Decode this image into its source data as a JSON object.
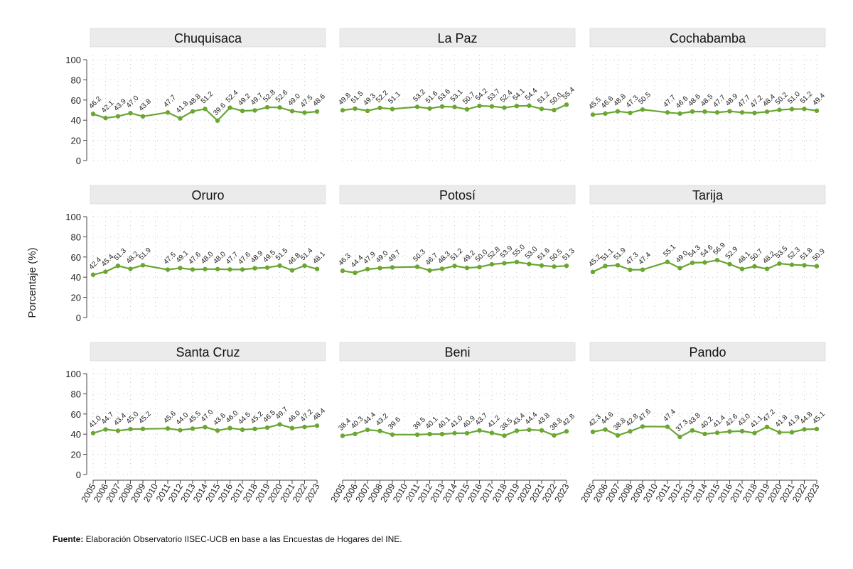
{
  "y_axis_title": "Porcentaje (%)",
  "source": {
    "label": "Fuente:",
    "text": " Elaboración Observatorio IISEC-UCB en base a las Encuestas de Hogares del INE."
  },
  "colors": {
    "line": "#6aa632",
    "panel_header": "#ebebeb",
    "grid": "#c8c8c8"
  },
  "chart_data": [
    {
      "type": "line",
      "title": "Chuquisaca",
      "ylim": [
        0,
        100
      ],
      "yticks": [
        0,
        20,
        40,
        60,
        80,
        100
      ],
      "x": [
        2005,
        2006,
        2007,
        2008,
        2009,
        2011,
        2012,
        2013,
        2014,
        2015,
        2016,
        2017,
        2018,
        2019,
        2020,
        2021,
        2022,
        2023
      ],
      "values": [
        46.2,
        42.1,
        43.9,
        47.0,
        43.8,
        47.7,
        41.8,
        48.8,
        51.2,
        39.6,
        52.4,
        49.2,
        49.7,
        52.8,
        52.6,
        49.0,
        47.5,
        48.6
      ]
    },
    {
      "type": "line",
      "title": "La Paz",
      "ylim": [
        0,
        100
      ],
      "yticks": [
        0,
        20,
        40,
        60,
        80,
        100
      ],
      "x": [
        2005,
        2006,
        2007,
        2008,
        2009,
        2011,
        2012,
        2013,
        2014,
        2015,
        2016,
        2017,
        2018,
        2019,
        2020,
        2021,
        2022,
        2023
      ],
      "values": [
        49.8,
        51.5,
        49.3,
        52.2,
        51.1,
        53.2,
        51.6,
        53.6,
        53.1,
        50.7,
        54.2,
        53.7,
        52.4,
        54.1,
        54.4,
        51.2,
        50.0,
        55.4
      ]
    },
    {
      "type": "line",
      "title": "Cochabamba",
      "ylim": [
        0,
        100
      ],
      "yticks": [
        0,
        20,
        40,
        60,
        80,
        100
      ],
      "x": [
        2005,
        2006,
        2007,
        2008,
        2009,
        2011,
        2012,
        2013,
        2014,
        2015,
        2016,
        2017,
        2018,
        2019,
        2020,
        2021,
        2022,
        2023
      ],
      "values": [
        45.5,
        46.6,
        48.8,
        47.3,
        50.5,
        47.7,
        46.6,
        48.6,
        48.5,
        47.7,
        48.9,
        47.7,
        47.2,
        48.4,
        50.2,
        51.0,
        51.2,
        49.4
      ]
    },
    {
      "type": "line",
      "title": "Oruro",
      "ylim": [
        0,
        100
      ],
      "yticks": [
        0,
        20,
        40,
        60,
        80,
        100
      ],
      "x": [
        2005,
        2006,
        2007,
        2008,
        2009,
        2011,
        2012,
        2013,
        2014,
        2015,
        2016,
        2017,
        2018,
        2019,
        2020,
        2021,
        2022,
        2023
      ],
      "values": [
        42.4,
        45.4,
        51.3,
        48.2,
        51.9,
        47.5,
        49.1,
        47.6,
        48.0,
        48.0,
        47.7,
        47.6,
        48.9,
        49.5,
        51.5,
        46.8,
        51.4,
        48.1
      ]
    },
    {
      "type": "line",
      "title": "Potosí",
      "ylim": [
        0,
        100
      ],
      "yticks": [
        0,
        20,
        40,
        60,
        80,
        100
      ],
      "x": [
        2005,
        2006,
        2007,
        2008,
        2009,
        2011,
        2012,
        2013,
        2014,
        2015,
        2016,
        2017,
        2018,
        2019,
        2020,
        2021,
        2022,
        2023
      ],
      "values": [
        46.3,
        44.4,
        47.9,
        49.0,
        49.7,
        50.3,
        46.7,
        48.3,
        51.2,
        49.2,
        50.0,
        52.8,
        53.9,
        55.0,
        53.0,
        51.6,
        50.5,
        51.3
      ]
    },
    {
      "type": "line",
      "title": "Tarija",
      "ylim": [
        0,
        100
      ],
      "yticks": [
        0,
        20,
        40,
        60,
        80,
        100
      ],
      "x": [
        2005,
        2006,
        2007,
        2008,
        2009,
        2011,
        2012,
        2013,
        2014,
        2015,
        2016,
        2017,
        2018,
        2019,
        2020,
        2021,
        2022,
        2023
      ],
      "values": [
        45.2,
        51.1,
        51.9,
        47.3,
        47.4,
        55.1,
        49.0,
        54.3,
        54.6,
        56.9,
        52.9,
        48.1,
        50.7,
        48.2,
        53.5,
        52.3,
        51.8,
        50.9
      ]
    },
    {
      "type": "line",
      "title": "Santa Cruz",
      "ylim": [
        0,
        100
      ],
      "yticks": [
        0,
        20,
        40,
        60,
        80,
        100
      ],
      "x": [
        2005,
        2006,
        2007,
        2008,
        2009,
        2011,
        2012,
        2013,
        2014,
        2015,
        2016,
        2017,
        2018,
        2019,
        2020,
        2021,
        2022,
        2023
      ],
      "values": [
        41.0,
        44.7,
        43.4,
        45.0,
        45.2,
        45.6,
        44.0,
        45.5,
        47.0,
        43.6,
        46.0,
        44.5,
        45.2,
        46.5,
        49.7,
        46.0,
        47.2,
        48.4
      ]
    },
    {
      "type": "line",
      "title": "Beni",
      "ylim": [
        0,
        100
      ],
      "yticks": [
        0,
        20,
        40,
        60,
        80,
        100
      ],
      "x": [
        2005,
        2006,
        2007,
        2008,
        2009,
        2011,
        2012,
        2013,
        2014,
        2015,
        2016,
        2017,
        2018,
        2019,
        2020,
        2021,
        2022,
        2023
      ],
      "values": [
        38.4,
        40.3,
        44.4,
        43.2,
        39.6,
        39.5,
        40.1,
        40.1,
        41.0,
        40.9,
        43.7,
        41.2,
        38.5,
        43.4,
        44.4,
        43.8,
        38.8,
        42.8
      ]
    },
    {
      "type": "line",
      "title": "Pando",
      "ylim": [
        0,
        100
      ],
      "yticks": [
        0,
        20,
        40,
        60,
        80,
        100
      ],
      "x": [
        2005,
        2006,
        2007,
        2008,
        2009,
        2011,
        2012,
        2013,
        2014,
        2015,
        2016,
        2017,
        2018,
        2019,
        2020,
        2021,
        2022,
        2023
      ],
      "values": [
        42.3,
        44.6,
        38.8,
        42.8,
        47.6,
        47.4,
        37.3,
        43.8,
        40.2,
        41.4,
        42.6,
        43.0,
        41.1,
        47.2,
        41.8,
        41.9,
        44.8,
        45.1
      ]
    }
  ],
  "x_ticks": [
    2005,
    2006,
    2007,
    2008,
    2009,
    2010,
    2011,
    2012,
    2013,
    2014,
    2015,
    2016,
    2017,
    2018,
    2019,
    2020,
    2021,
    2022,
    2023
  ]
}
